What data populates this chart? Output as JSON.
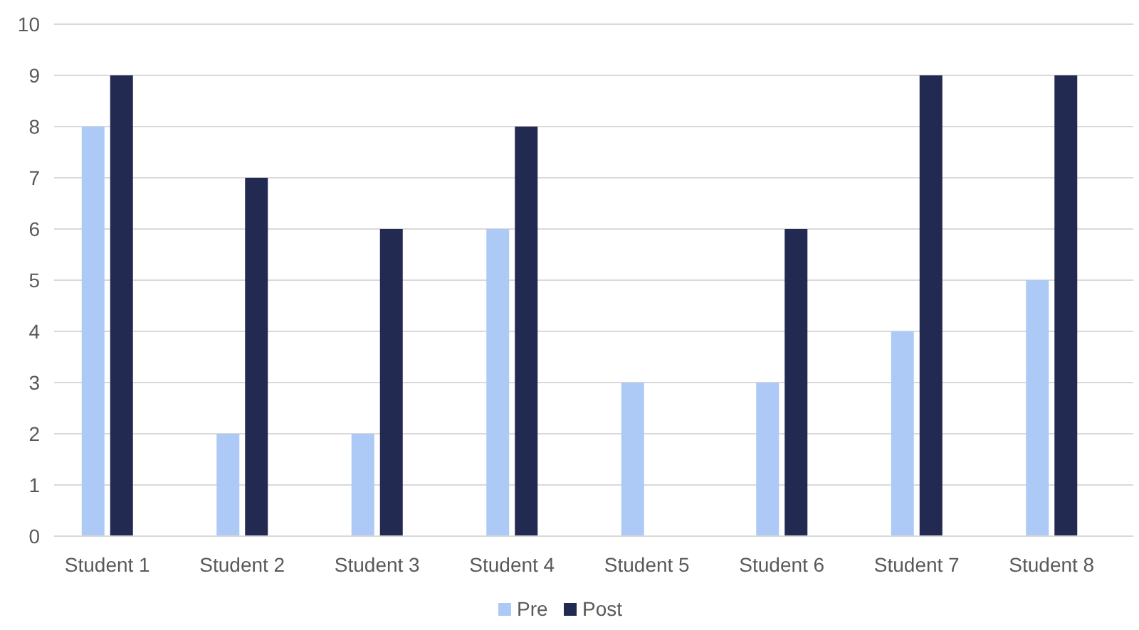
{
  "chart_data": {
    "type": "bar",
    "categories": [
      "Student 1",
      "Student 2",
      "Student 3",
      "Student 4",
      "Student 5",
      "Student 6",
      "Student 7",
      "Student 8"
    ],
    "series": [
      {
        "name": "Pre",
        "color": "#adc9f5",
        "values": [
          8,
          2,
          2,
          6,
          3,
          3,
          4,
          5
        ]
      },
      {
        "name": "Post",
        "color": "#232a52",
        "values": [
          9,
          7,
          6,
          8,
          0,
          6,
          9,
          9
        ]
      }
    ],
    "ylim": [
      0,
      10
    ],
    "yticks": [
      0,
      1,
      2,
      3,
      4,
      5,
      6,
      7,
      8,
      9,
      10
    ],
    "grid": "y",
    "legend": "bottom"
  }
}
